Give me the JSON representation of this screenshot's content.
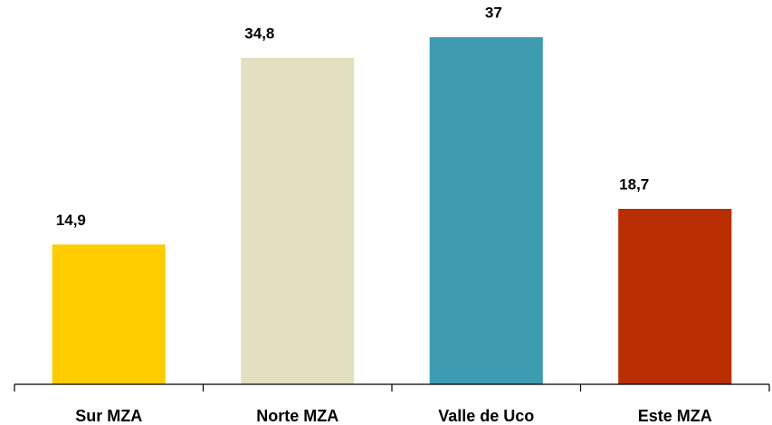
{
  "chart_data": {
    "type": "bar",
    "categories": [
      "Sur MZA",
      "Norte MZA",
      "Valle de Uco",
      "Este MZA"
    ],
    "values": [
      14.9,
      34.8,
      37,
      18.7
    ],
    "value_labels": [
      "14,9",
      "34,8",
      "37",
      "18,7"
    ],
    "colors": [
      "#ffcc00",
      "#e1e1c1",
      "#3e9bb1",
      "#b82e00"
    ],
    "ylim": [
      0,
      40
    ]
  }
}
